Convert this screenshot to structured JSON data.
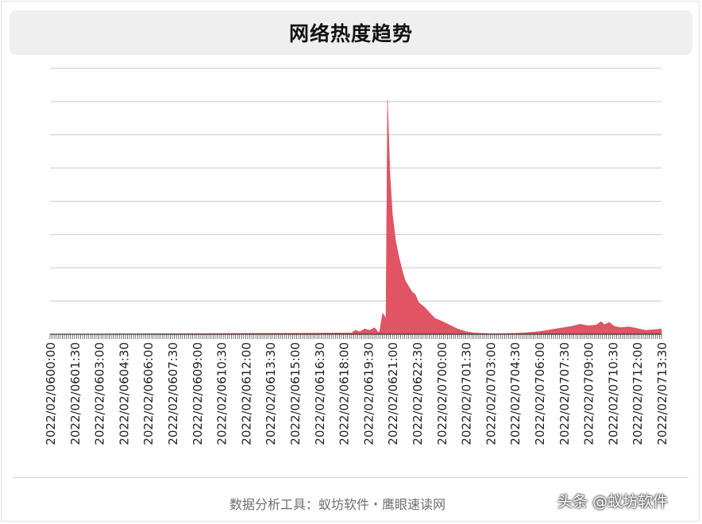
{
  "title": "网络热度趋势",
  "footer": "数据分析工具：蚁坊软件・鹰眼速读网",
  "watermark": "头条 @蚁坊软件",
  "colors": {
    "area": "#e05463",
    "grid": "#c8c8c8",
    "axis": "#333333",
    "title_bg": "#efefef"
  },
  "chart_data": {
    "type": "area",
    "title": "网络热度趋势",
    "xlabel": "",
    "ylabel": "",
    "grid": true,
    "y_tick_labels_shown": false,
    "y_gridlines": 8,
    "ylim": [
      0,
      100
    ],
    "x_tick_labels": [
      "2022/02/0600:00",
      "2022/02/0601:30",
      "2022/02/0603:00",
      "2022/02/0604:30",
      "2022/02/0606:00",
      "2022/02/0607:30",
      "2022/02/0609:00",
      "2022/02/0610:30",
      "2022/02/0612:00",
      "2022/02/0613:30",
      "2022/02/0615:00",
      "2022/02/0616:30",
      "2022/02/0618:00",
      "2022/02/0619:30",
      "2022/02/0621:00",
      "2022/02/0622:30",
      "2022/02/0700:00",
      "2022/02/0701:30",
      "2022/02/0703:00",
      "2022/02/0704:30",
      "2022/02/0706:00",
      "2022/02/0707:30",
      "2022/02/0709:00",
      "2022/02/0710:30",
      "2022/02/0712:00",
      "2022/02/0713:30"
    ],
    "x_hours": [
      0,
      18.5,
      18.7,
      19.0,
      19.3,
      19.6,
      19.9,
      20.1,
      20.2,
      20.4,
      20.6,
      20.7,
      20.85,
      21.0,
      21.2,
      21.4,
      21.6,
      21.8,
      22.0,
      22.2,
      22.4,
      22.6,
      22.8,
      23.0,
      23.3,
      23.6,
      24.0,
      24.5,
      25.0,
      25.5,
      26.0,
      27.0,
      28.0,
      29.0,
      30.0,
      31.0,
      32.0,
      32.5,
      33.0,
      33.5,
      33.8,
      34.0,
      34.3,
      34.6,
      35.0,
      35.5,
      36.0,
      36.5,
      37.0,
      37.5,
      37.7
    ],
    "values": [
      0,
      0.5,
      1.5,
      1.0,
      2.0,
      1.5,
      2.5,
      1.0,
      0.8,
      8.0,
      6.0,
      88.0,
      60.0,
      45.0,
      35.0,
      29.0,
      24.0,
      20.0,
      18.0,
      16.0,
      15.0,
      12.0,
      11.0,
      10.0,
      8.0,
      6.0,
      5.0,
      3.5,
      2.0,
      1.0,
      0.5,
      0.2,
      0.3,
      0.5,
      1.0,
      2.0,
      3.0,
      3.8,
      3.2,
      3.5,
      4.8,
      3.6,
      4.5,
      3.0,
      2.5,
      2.8,
      2.2,
      1.5,
      1.7,
      2.0,
      1.2
    ]
  }
}
